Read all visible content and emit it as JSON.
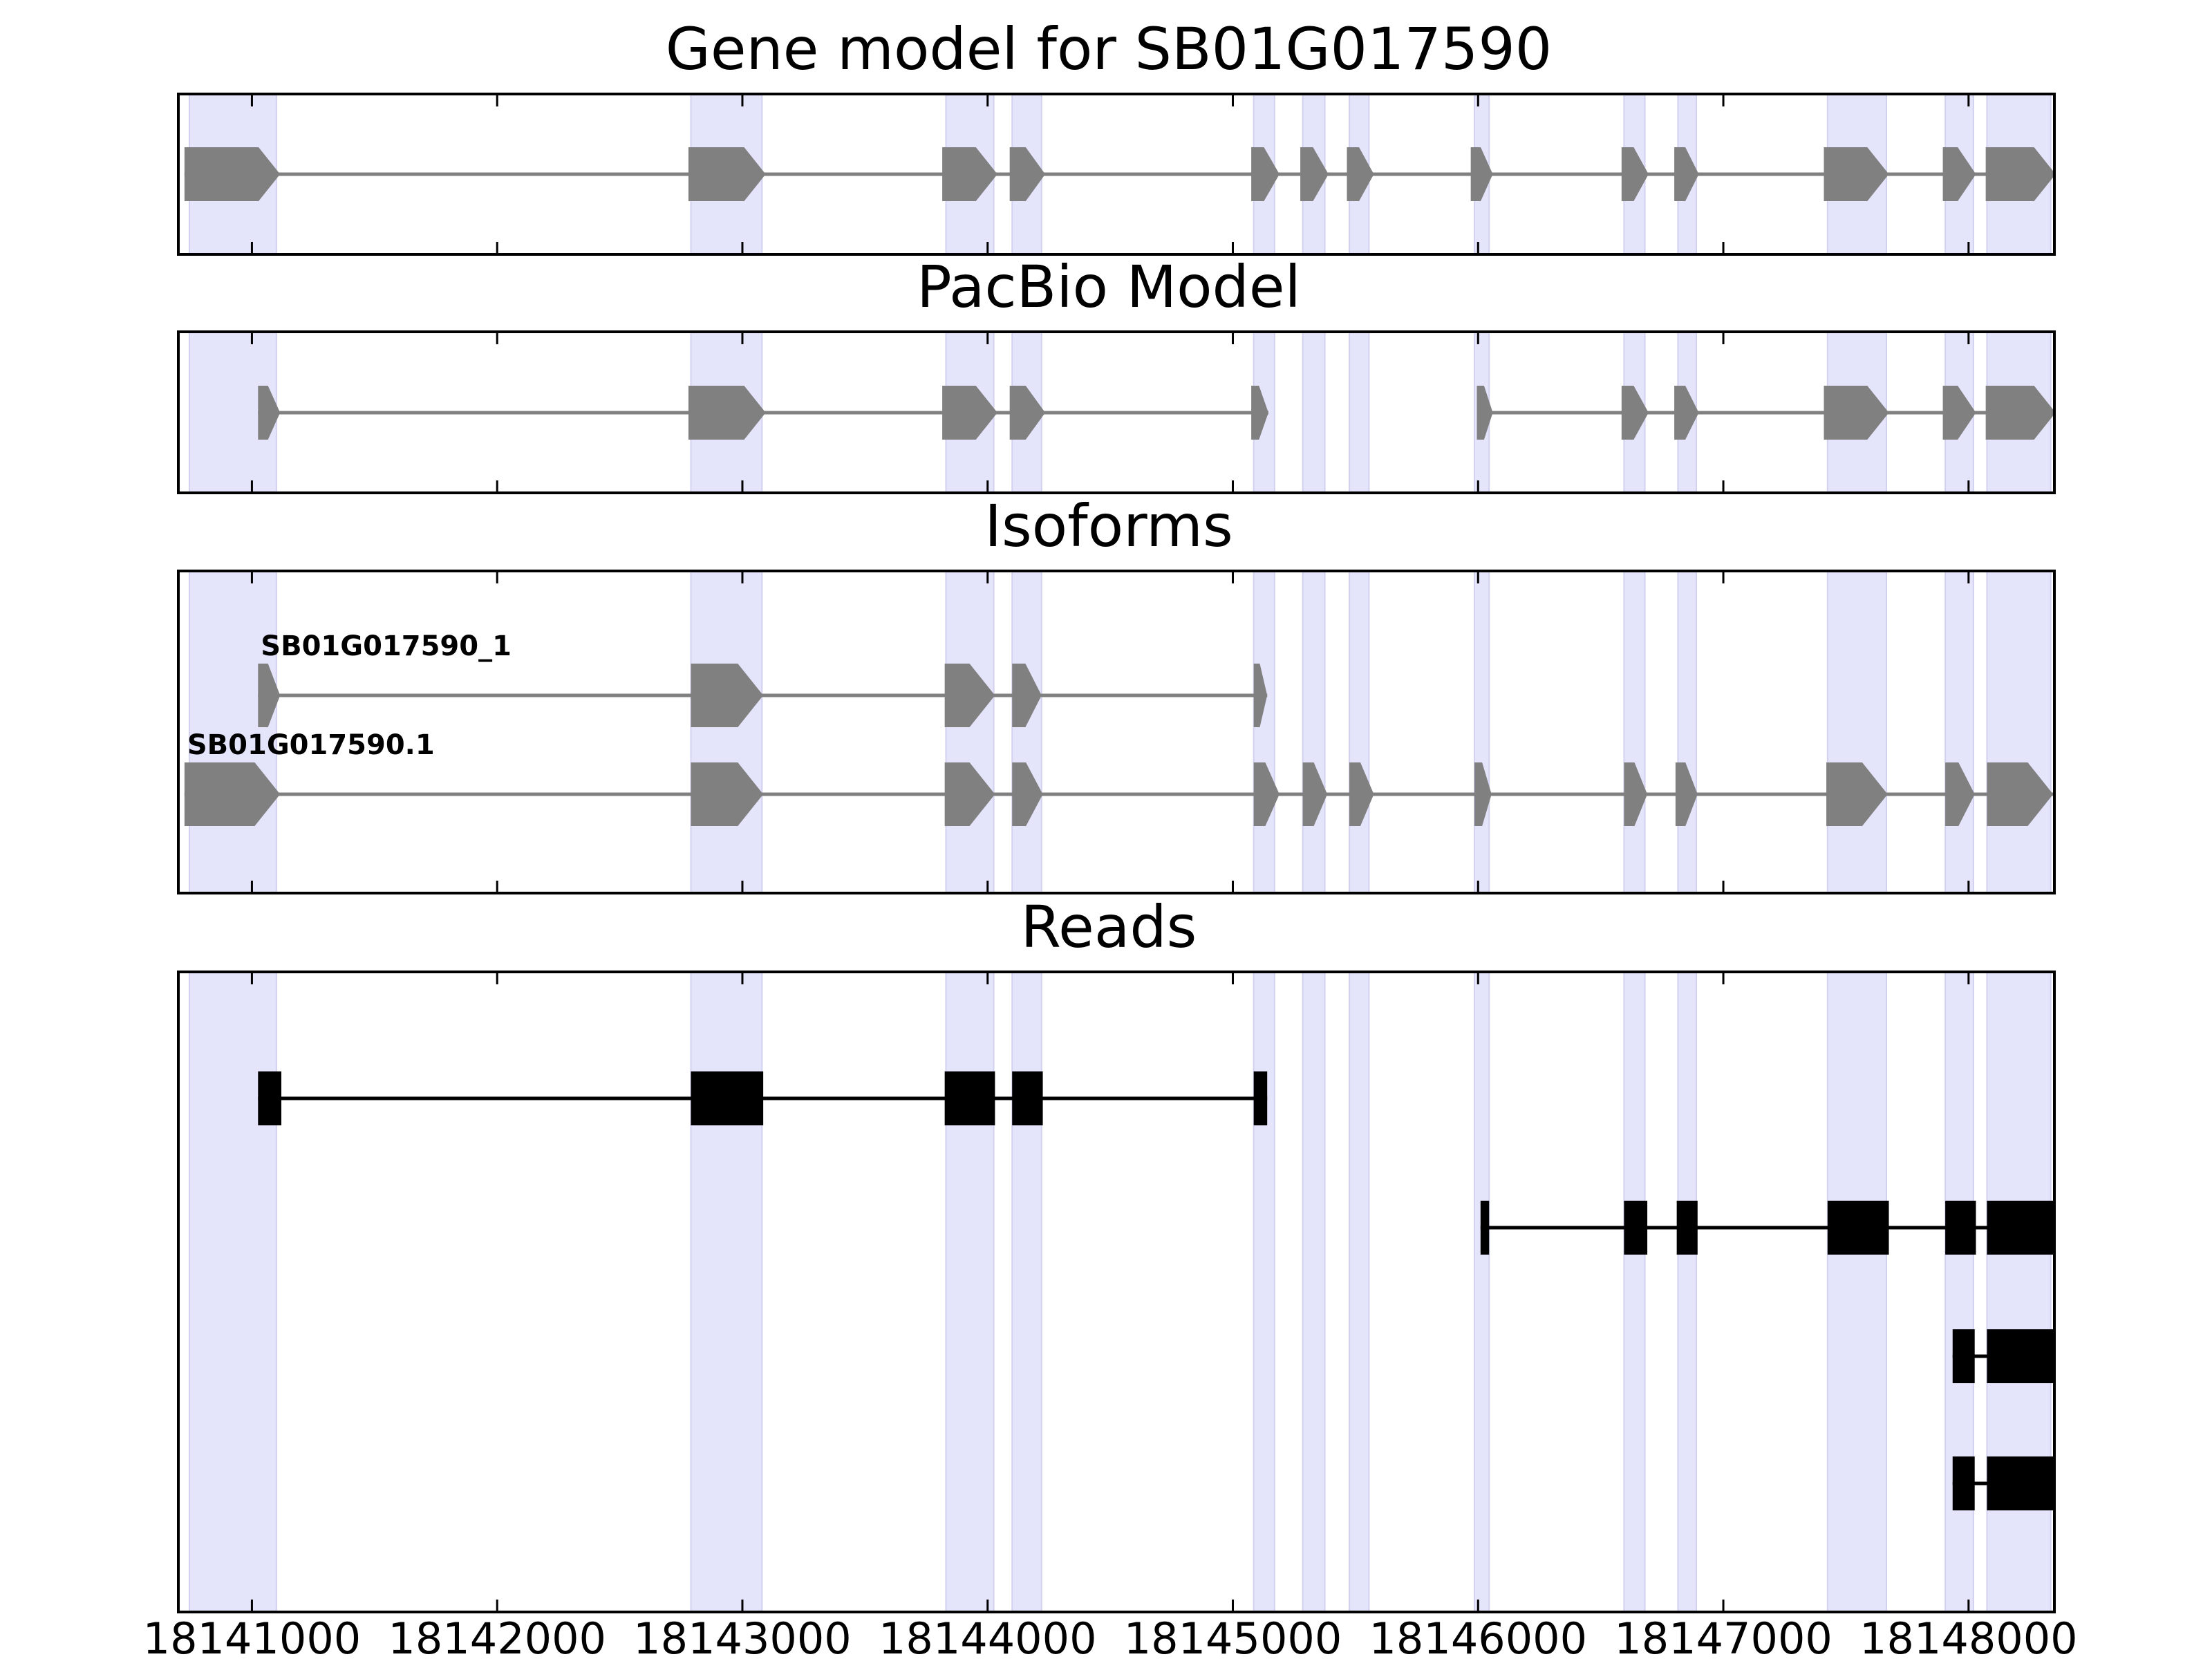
{
  "chart_data": {
    "type": "gene-structure",
    "x_axis": {
      "xlim": [
        18140700,
        18148350
      ],
      "ticks": [
        18141000,
        18142000,
        18143000,
        18144000,
        18145000,
        18146000,
        18147000,
        18148000
      ],
      "tick_labels": [
        "18141000",
        "18142000",
        "18143000",
        "18144000",
        "18145000",
        "18146000",
        "18147000",
        "18148000"
      ]
    },
    "highlight_regions": [
      [
        18140745,
        18141100
      ],
      [
        18142790,
        18143080
      ],
      [
        18143830,
        18144025
      ],
      [
        18144100,
        18144220
      ],
      [
        18145085,
        18145170
      ],
      [
        18145285,
        18145375
      ],
      [
        18145475,
        18145555
      ],
      [
        18145985,
        18146045
      ],
      [
        18146595,
        18146680
      ],
      [
        18146815,
        18146890
      ],
      [
        18147425,
        18147665
      ],
      [
        18147905,
        18148020
      ],
      [
        18148075,
        18148335
      ]
    ],
    "panels": [
      {
        "key": "gene_model",
        "title": "Gene model for SB01G017590",
        "style": "arrow",
        "tracks": [
          {
            "label": "",
            "exons": [
              [
                18140725,
                18141115
              ],
              [
                18142780,
                18143095
              ],
              [
                18143815,
                18144040
              ],
              [
                18144090,
                18144235
              ],
              [
                18145075,
                18145190
              ],
              [
                18145275,
                18145390
              ],
              [
                18145465,
                18145575
              ],
              [
                18145970,
                18146060
              ],
              [
                18146585,
                18146695
              ],
              [
                18146800,
                18146900
              ],
              [
                18147410,
                18147675
              ],
              [
                18147895,
                18148030
              ],
              [
                18148070,
                18148355
              ]
            ]
          }
        ]
      },
      {
        "key": "pacbio",
        "title": "PacBio Model",
        "style": "arrow",
        "tracks": [
          {
            "label": "",
            "exons": [
              [
                18141025,
                18141115
              ],
              [
                18142780,
                18143095
              ],
              [
                18143815,
                18144040
              ],
              [
                18144090,
                18144235
              ],
              [
                18145075,
                18145145
              ]
            ]
          },
          {
            "label": "",
            "exons": [
              [
                18145995,
                18146060
              ],
              [
                18146585,
                18146695
              ],
              [
                18146800,
                18146900
              ],
              [
                18147410,
                18147675
              ],
              [
                18147895,
                18148030
              ],
              [
                18148070,
                18148355
              ]
            ]
          }
        ]
      },
      {
        "key": "isoforms",
        "title": "Isoforms",
        "style": "arrow",
        "tracks": [
          {
            "label": "SB01G017590_1",
            "exons": [
              [
                18141025,
                18141115
              ],
              [
                18142790,
                18143085
              ],
              [
                18143825,
                18144030
              ],
              [
                18144100,
                18144220
              ],
              [
                18145085,
                18145140
              ]
            ]
          },
          {
            "label": "SB01G017590.1",
            "exons": [
              [
                18140725,
                18141115
              ],
              [
                18142790,
                18143085
              ],
              [
                18143825,
                18144030
              ],
              [
                18144100,
                18144225
              ],
              [
                18145085,
                18145190
              ],
              [
                18145285,
                18145385
              ],
              [
                18145475,
                18145575
              ],
              [
                18145985,
                18146055
              ],
              [
                18146595,
                18146690
              ],
              [
                18146805,
                18146895
              ],
              [
                18147420,
                18147670
              ],
              [
                18147905,
                18148025
              ],
              [
                18148075,
                18148345
              ]
            ]
          }
        ]
      },
      {
        "key": "reads",
        "title": "Reads",
        "style": "box",
        "tracks": [
          {
            "label": "",
            "exons": [
              [
                18141025,
                18141120
              ],
              [
                18142790,
                18143085
              ],
              [
                18143825,
                18144030
              ],
              [
                18144100,
                18144225
              ],
              [
                18145085,
                18145140
              ]
            ]
          },
          {
            "label": "",
            "exons": [
              [
                18146010,
                18146045
              ],
              [
                18146595,
                18146690
              ],
              [
                18146810,
                18146895
              ],
              [
                18147425,
                18147675
              ],
              [
                18147905,
                18148030
              ],
              [
                18148075,
                18148345
              ]
            ]
          },
          {
            "label": "",
            "exons": [
              [
                18147935,
                18148025
              ],
              [
                18148075,
                18148350
              ]
            ]
          },
          {
            "label": "",
            "exons": [
              [
                18147935,
                18148025
              ],
              [
                18148075,
                18148350
              ]
            ]
          }
        ]
      }
    ]
  }
}
